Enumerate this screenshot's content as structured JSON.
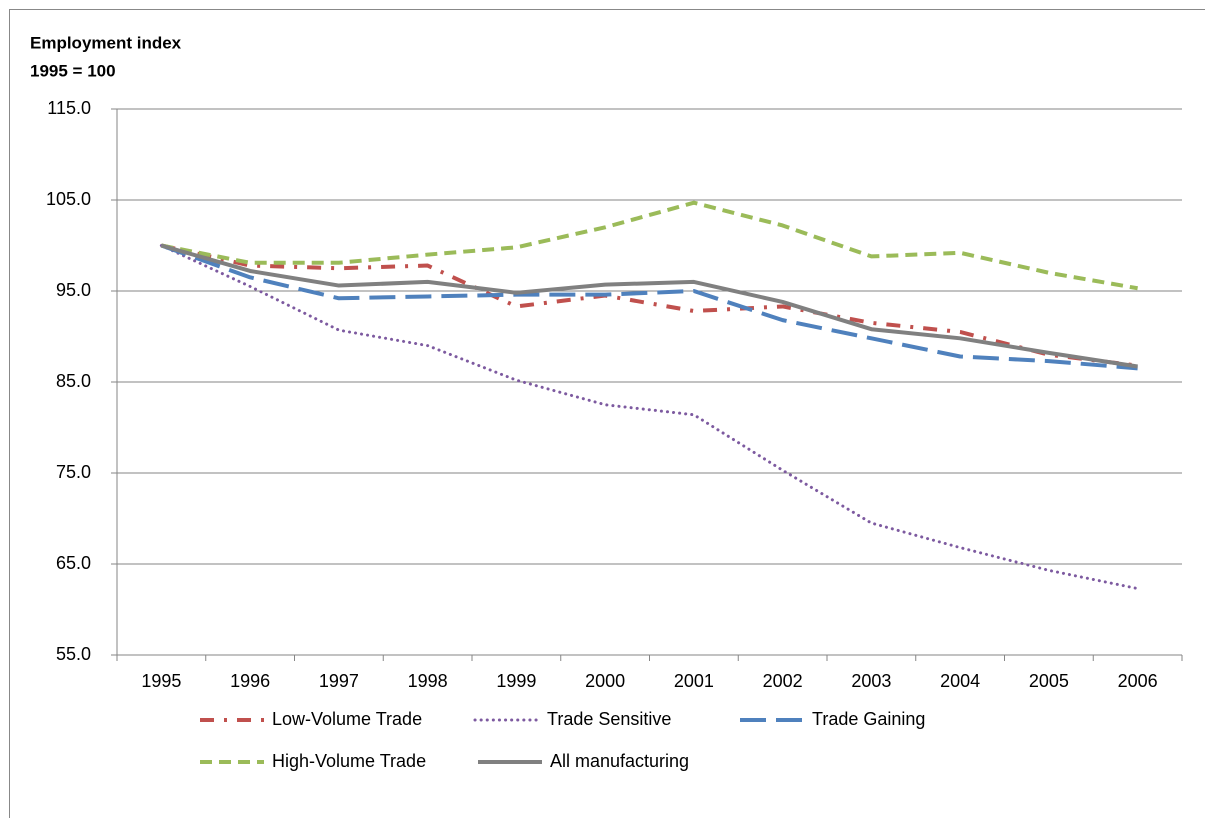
{
  "chart_data": {
    "type": "line",
    "title": "Employment index",
    "subtitle": "1995 = 100",
    "categories": [
      "1995",
      "1996",
      "1997",
      "1998",
      "1999",
      "2000",
      "2001",
      "2002",
      "2003",
      "2004",
      "2005",
      "2006"
    ],
    "ylim": [
      55,
      115
    ],
    "yticks": [
      {
        "value": 55,
        "label": "55.0"
      },
      {
        "value": 65,
        "label": "65.0"
      },
      {
        "value": 75,
        "label": "75.0"
      },
      {
        "value": 85,
        "label": "85.0"
      },
      {
        "value": 95,
        "label": "95.0"
      },
      {
        "value": 105,
        "label": "105.0"
      },
      {
        "value": 115,
        "label": "115.0"
      }
    ],
    "grid": true,
    "legend": "bottom",
    "series": [
      {
        "name": "Low-Volume Trade",
        "color": "#c0504d",
        "dash": "14,10,3,10",
        "values": [
          100,
          97.8,
          97.5,
          97.8,
          93.3,
          94.5,
          92.8,
          93.3,
          91.5,
          90.5,
          88,
          86.8
        ]
      },
      {
        "name": "Trade Sensitive",
        "color": "#7d5aa0",
        "dash": "2,6",
        "values": [
          100,
          95.5,
          90.7,
          89,
          85.2,
          82.5,
          81.4,
          75.3,
          69.5,
          66.8,
          64.3,
          62.3
        ]
      },
      {
        "name": "Trade Gaining",
        "color": "#4f81bd",
        "dash": "26,10",
        "values": [
          100,
          96.5,
          94.2,
          94.4,
          94.6,
          94.6,
          95,
          91.8,
          89.8,
          87.8,
          87.3,
          86.5
        ]
      },
      {
        "name": "High-Volume Trade",
        "color": "#9bbb59",
        "dash": "12,7",
        "values": [
          100,
          98.1,
          98.1,
          99,
          99.8,
          102,
          104.7,
          102.2,
          98.8,
          99.2,
          97,
          95.3
        ]
      },
      {
        "name": "All manufacturing",
        "color": "#808080",
        "dash": "none",
        "values": [
          100,
          97.2,
          95.6,
          96,
          94.8,
          95.7,
          96,
          93.8,
          90.8,
          89.8,
          88.2,
          86.7
        ]
      }
    ]
  }
}
